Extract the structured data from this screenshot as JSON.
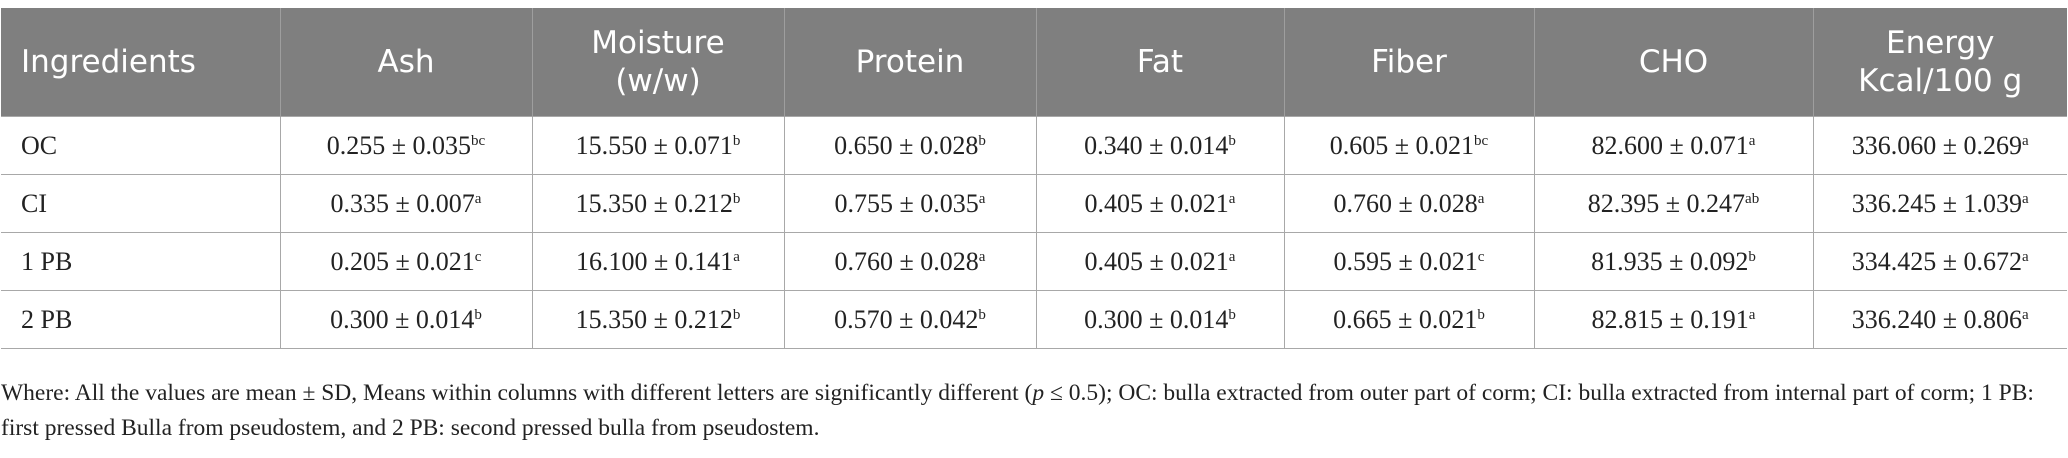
{
  "table": {
    "headers": [
      {
        "line1": "Ingredients",
        "line2": ""
      },
      {
        "line1": "Ash",
        "line2": ""
      },
      {
        "line1": "Moisture",
        "line2": "(w/w)"
      },
      {
        "line1": "Protein",
        "line2": ""
      },
      {
        "line1": "Fat",
        "line2": ""
      },
      {
        "line1": "Fiber",
        "line2": ""
      },
      {
        "line1": "CHO",
        "line2": ""
      },
      {
        "line1": "Energy",
        "line2": "Kcal/100 g"
      }
    ],
    "rows": [
      {
        "label": "OC",
        "cells": [
          {
            "v": "0.255 ± 0.035",
            "s": "bc"
          },
          {
            "v": "15.550 ± 0.071",
            "s": "b"
          },
          {
            "v": "0.650 ± 0.028",
            "s": "b"
          },
          {
            "v": "0.340 ± 0.014",
            "s": "b"
          },
          {
            "v": "0.605 ± 0.021",
            "s": "bc"
          },
          {
            "v": "82.600 ± 0.071",
            "s": "a"
          },
          {
            "v": "336.060 ± 0.269",
            "s": "a"
          }
        ]
      },
      {
        "label": "CI",
        "cells": [
          {
            "v": "0.335 ± 0.007",
            "s": "a"
          },
          {
            "v": "15.350 ± 0.212",
            "s": "b"
          },
          {
            "v": "0.755 ± 0.035",
            "s": "a"
          },
          {
            "v": "0.405 ± 0.021",
            "s": "a"
          },
          {
            "v": "0.760 ± 0.028",
            "s": "a"
          },
          {
            "v": "82.395 ± 0.247",
            "s": "ab"
          },
          {
            "v": "336.245 ± 1.039",
            "s": "a"
          }
        ]
      },
      {
        "label": "1 PB",
        "cells": [
          {
            "v": "0.205 ± 0.021",
            "s": "c"
          },
          {
            "v": "16.100 ± 0.141",
            "s": "a"
          },
          {
            "v": "0.760 ± 0.028",
            "s": "a"
          },
          {
            "v": "0.405 ± 0.021",
            "s": "a"
          },
          {
            "v": "0.595 ± 0.021",
            "s": "c"
          },
          {
            "v": "81.935 ± 0.092",
            "s": "b"
          },
          {
            "v": "334.425 ± 0.672",
            "s": "a"
          }
        ]
      },
      {
        "label": "2 PB",
        "cells": [
          {
            "v": "0.300 ± 0.014",
            "s": "b"
          },
          {
            "v": "15.350 ± 0.212",
            "s": "b"
          },
          {
            "v": "0.570 ± 0.042",
            "s": "b"
          },
          {
            "v": "0.300 ± 0.014",
            "s": "b"
          },
          {
            "v": "0.665 ± 0.021",
            "s": "b"
          },
          {
            "v": "82.815 ± 0.191",
            "s": "a"
          },
          {
            "v": "336.240 ± 0.806",
            "s": "a"
          }
        ]
      }
    ]
  },
  "footnote": {
    "before_p": "Where: All the values are mean ± SD, Means within columns with different letters are significantly different (",
    "p_symbol": "p",
    "after_p": " ≤ 0.5); OC: bulla extracted from outer part of corm; CI: bulla extracted from internal part of corm; 1 PB: first pressed Bulla from pseudostem, and 2 PB: second pressed bulla from pseudostem."
  },
  "colors": {
    "header_bg": "#7f7f7f",
    "header_text": "#ffffff",
    "body_text": "#222222",
    "grid": "#a8a8a8"
  }
}
